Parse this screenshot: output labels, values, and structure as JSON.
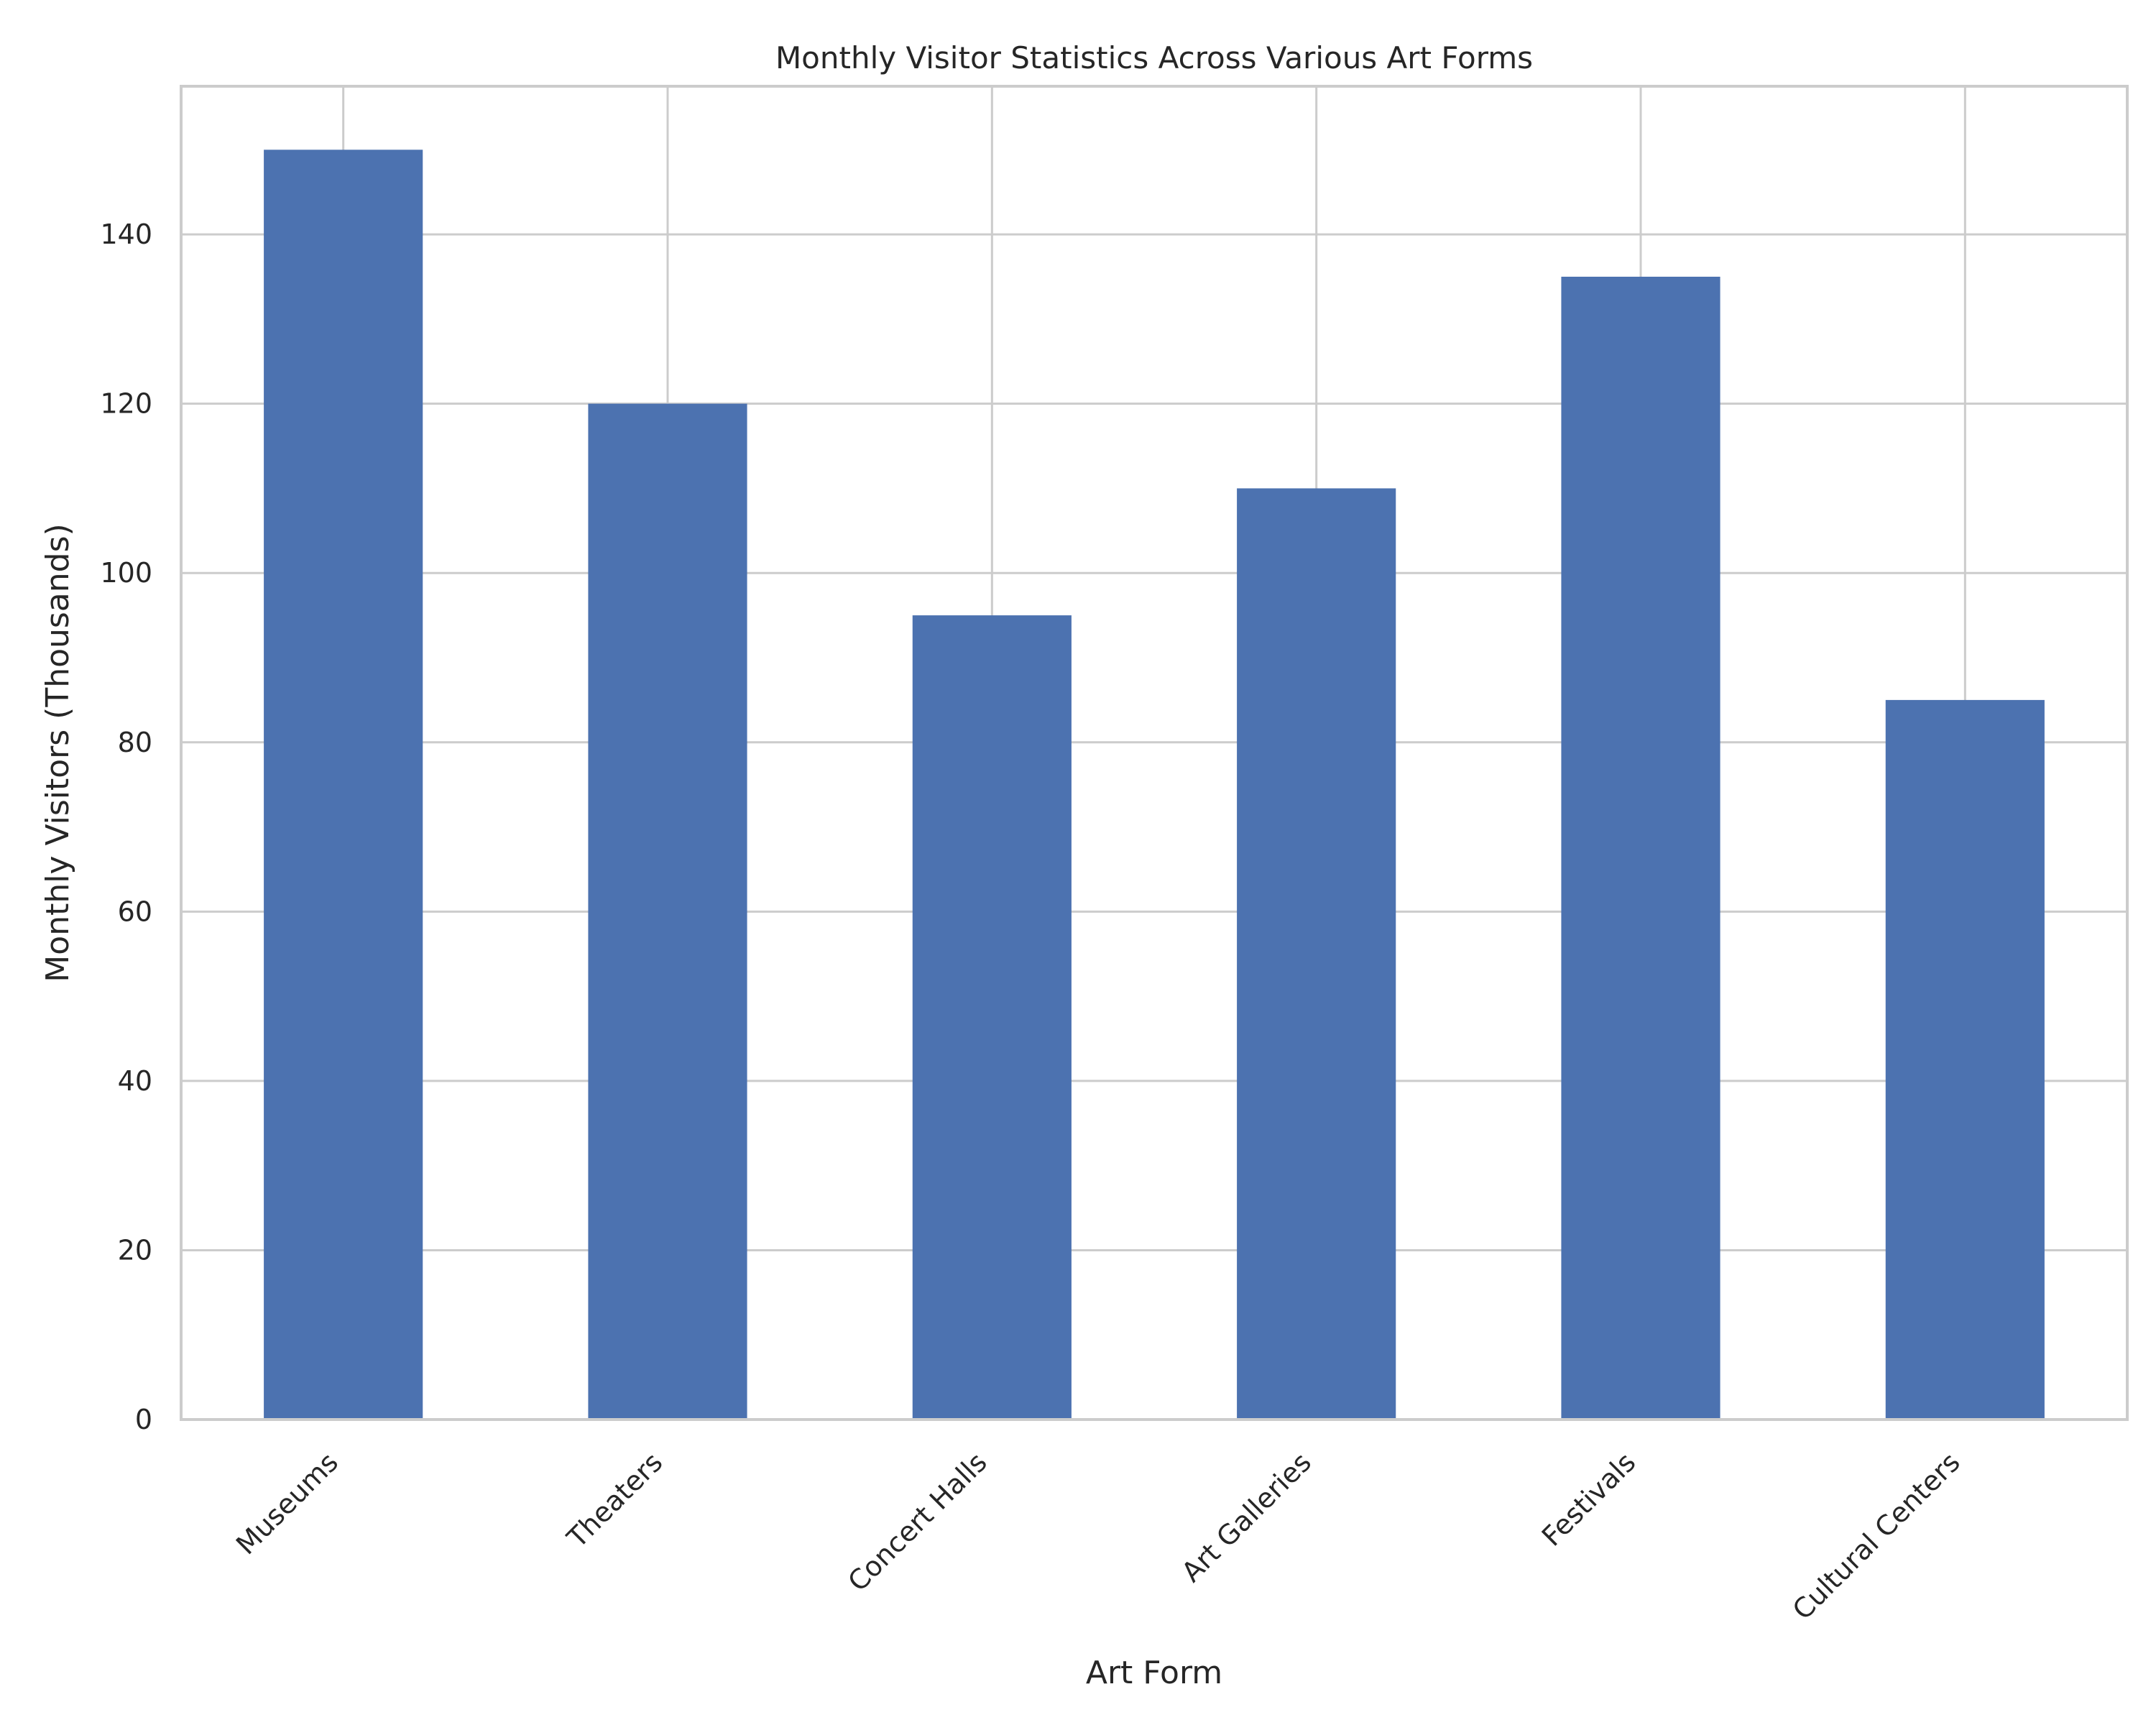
{
  "chart_data": {
    "type": "bar",
    "title": "Monthly Visitor Statistics Across Various Art Forms",
    "xlabel": "Art Form",
    "ylabel": "Monthly Visitors (Thousands)",
    "categories": [
      "Museums",
      "Theaters",
      "Concert Halls",
      "Art Galleries",
      "Festivals",
      "Cultural Centers"
    ],
    "values": [
      150,
      120,
      95,
      110,
      135,
      85
    ],
    "ylim": [
      0,
      157.5
    ],
    "yticks": [
      0,
      20,
      40,
      60,
      80,
      100,
      120,
      140
    ],
    "grid": true,
    "legend": "none",
    "bar_color": "#4c72b0"
  }
}
